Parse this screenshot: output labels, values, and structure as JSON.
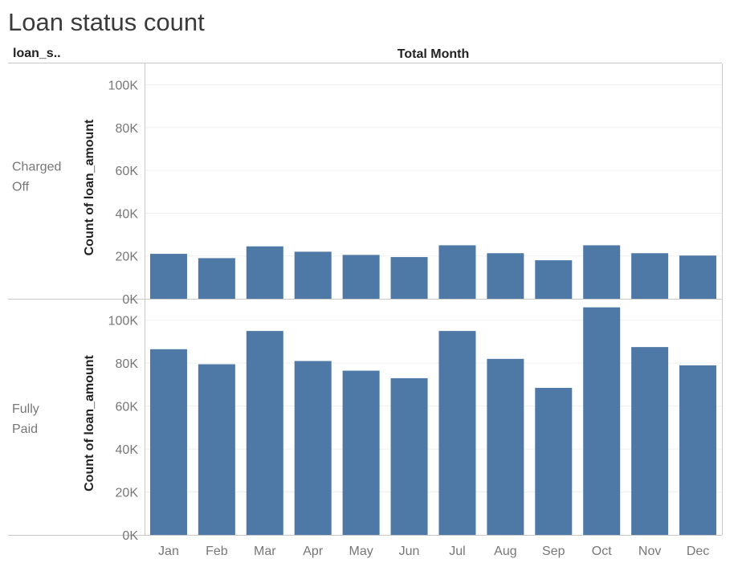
{
  "chart_data": {
    "type": "bar",
    "title": "Loan status count",
    "row_header": "loan_s..",
    "column_header": "Total Month",
    "ylabel": "Count of loan_amount",
    "categories": [
      "Jan",
      "Feb",
      "Mar",
      "Apr",
      "May",
      "Jun",
      "Jul",
      "Aug",
      "Sep",
      "Oct",
      "Nov",
      "Dec"
    ],
    "ylim": [
      0,
      110000
    ],
    "yticks": [
      0,
      20000,
      40000,
      60000,
      80000,
      100000
    ],
    "ytick_labels": [
      "0K",
      "20K",
      "40K",
      "60K",
      "80K",
      "100K"
    ],
    "bar_color": "#4e79a7",
    "grid": true,
    "panels": [
      {
        "row_label": [
          "Charged",
          "Off"
        ],
        "values": [
          21000,
          19000,
          24500,
          22000,
          20500,
          19500,
          25000,
          21300,
          18000,
          25000,
          21300,
          20200
        ]
      },
      {
        "row_label": [
          "Fully",
          "Paid"
        ],
        "values": [
          86500,
          79500,
          95000,
          81000,
          76500,
          73000,
          95000,
          82000,
          68500,
          106000,
          87500,
          79000
        ]
      }
    ]
  }
}
